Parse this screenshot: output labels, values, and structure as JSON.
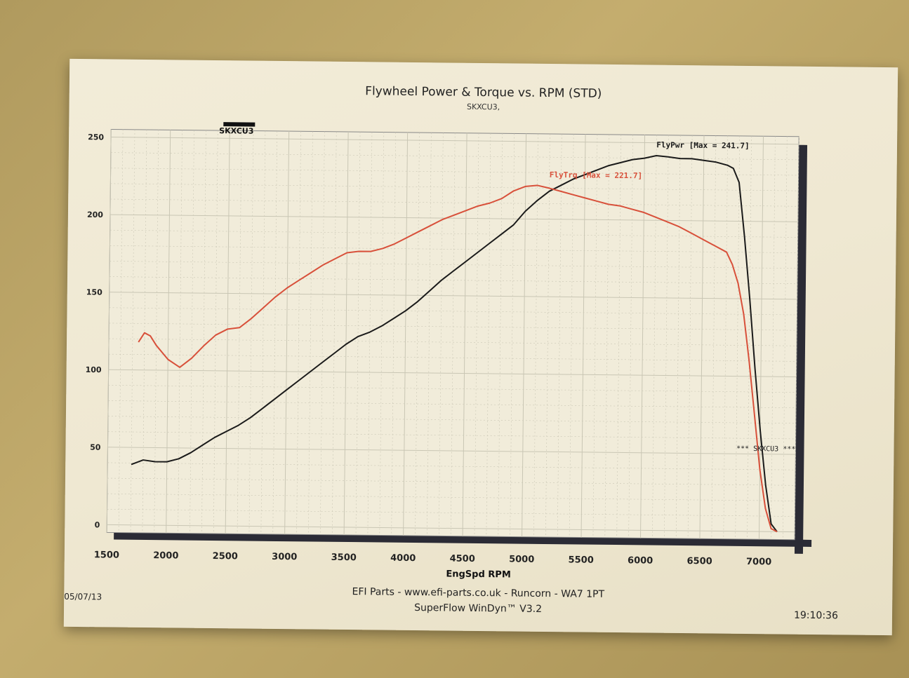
{
  "header": {
    "title": "Flywheel Power & Torque vs. RPM (STD)",
    "subtitle": "SKXCU3,"
  },
  "footer": {
    "company": "EFI Parts - www.efi-parts.co.uk - Runcorn - WA7 1PT",
    "software": "SuperFlow WinDyn™ V3.2",
    "date": "05/07/13",
    "time": "19:10:36"
  },
  "colors": {
    "power": "#1a1a1a",
    "torque": "#d8503a",
    "grid": "#c9c6b4"
  },
  "chart_data": {
    "type": "line",
    "title": "Flywheel Power & Torque vs. RPM (STD)",
    "subtitle": "SKXCU3,",
    "xlabel": "EngSpd RPM",
    "ylabel": "",
    "xlim": [
      1500,
      7300
    ],
    "ylim": [
      -5,
      255
    ],
    "x_ticks": [
      1500,
      2000,
      2500,
      3000,
      3500,
      4000,
      4500,
      5000,
      5500,
      6000,
      6500,
      7000
    ],
    "y_ticks": [
      0,
      50,
      100,
      150,
      200,
      250
    ],
    "legend": {
      "label": "SKXCU3",
      "placement": "top-left"
    },
    "run_label": "*** SKXCU3 ***",
    "grid": true,
    "series": [
      {
        "name": "FlyPwr",
        "max_label": "FlyPwr [Max = 241.7]",
        "x": [
          1700,
          1800,
          1900,
          2000,
          2100,
          2200,
          2300,
          2400,
          2500,
          2600,
          2700,
          2800,
          2900,
          3000,
          3100,
          3200,
          3300,
          3400,
          3500,
          3600,
          3700,
          3800,
          3900,
          4000,
          4100,
          4200,
          4300,
          4400,
          4500,
          4600,
          4700,
          4800,
          4900,
          5000,
          5100,
          5200,
          5300,
          5400,
          5500,
          5600,
          5700,
          5800,
          5900,
          6000,
          6100,
          6200,
          6300,
          6400,
          6500,
          6600,
          6700,
          6750,
          6800,
          6850,
          6900,
          6950,
          7000,
          7050,
          7100,
          7150
        ],
        "values": [
          39,
          42,
          41,
          41,
          43,
          47,
          52,
          57,
          61,
          65,
          70,
          76,
          82,
          88,
          94,
          100,
          106,
          112,
          118,
          123,
          126,
          130,
          135,
          140,
          146,
          153,
          160,
          166,
          172,
          178,
          184,
          190,
          196,
          205,
          212,
          218,
          222,
          226,
          229,
          232,
          235,
          237,
          239,
          240,
          241.7,
          241,
          240,
          240,
          239,
          238,
          236,
          234,
          225,
          190,
          150,
          105,
          65,
          30,
          5,
          0
        ]
      },
      {
        "name": "FlyTrq",
        "max_label": "FlyTrq [Max = 221.7]",
        "x": [
          1750,
          1800,
          1850,
          1900,
          2000,
          2100,
          2200,
          2300,
          2400,
          2500,
          2600,
          2700,
          2800,
          2900,
          3000,
          3100,
          3200,
          3300,
          3400,
          3500,
          3600,
          3700,
          3800,
          3900,
          4000,
          4100,
          4200,
          4300,
          4400,
          4500,
          4600,
          4700,
          4800,
          4900,
          5000,
          5100,
          5200,
          5300,
          5400,
          5500,
          5600,
          5700,
          5800,
          5900,
          6000,
          6100,
          6200,
          6300,
          6400,
          6500,
          6600,
          6700,
          6750,
          6800,
          6850,
          6900,
          6950,
          7000,
          7050,
          7100,
          7150
        ],
        "values": [
          118,
          124,
          122,
          116,
          107,
          102,
          108,
          116,
          123,
          127,
          128,
          134,
          141,
          148,
          154,
          159,
          164,
          169,
          173,
          177,
          178,
          178,
          180,
          183,
          187,
          191,
          195,
          199,
          202,
          205,
          208,
          210,
          213,
          218,
          221,
          221.7,
          220,
          218,
          216,
          214,
          212,
          210,
          209,
          207,
          205,
          202,
          199,
          196,
          192,
          188,
          184,
          180,
          172,
          160,
          140,
          110,
          75,
          40,
          15,
          2,
          0
        ]
      }
    ]
  }
}
